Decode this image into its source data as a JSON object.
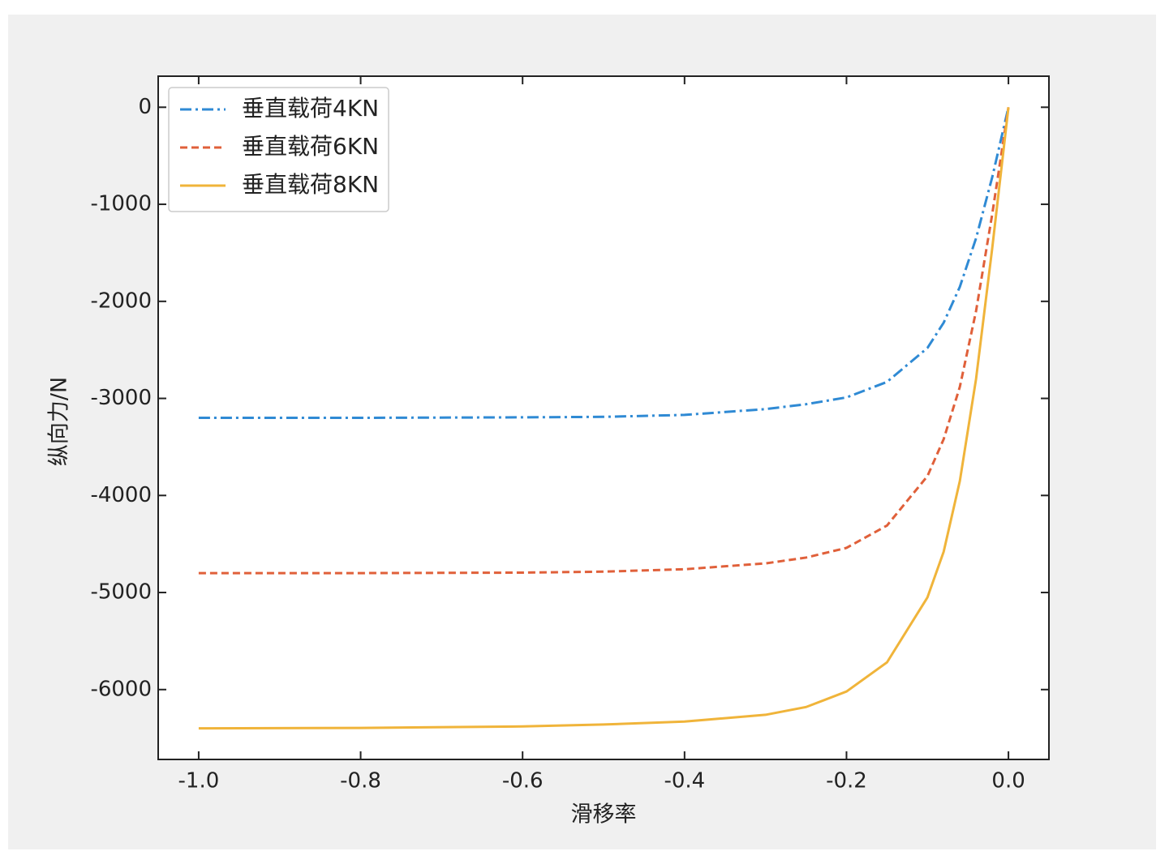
{
  "chart_data": {
    "type": "line",
    "xlabel": "滑移率",
    "ylabel": "纵向力/N",
    "x": [
      -1,
      -0.8,
      -0.6,
      -0.5,
      -0.4,
      -0.3,
      -0.25,
      -0.2,
      -0.15,
      -0.1,
      -0.08,
      -0.06,
      -0.04,
      -0.02,
      0
    ],
    "series": [
      {
        "name": "垂直载荷4KN",
        "color": "#2f8ad4",
        "linestyle": "dashdot",
        "values": [
          -3200,
          -3200,
          -3195,
          -3190,
          -3170,
          -3110,
          -3060,
          -2990,
          -2830,
          -2480,
          -2220,
          -1850,
          -1350,
          -720,
          0
        ]
      },
      {
        "name": "垂直载荷6KN",
        "color": "#e0603a",
        "linestyle": "dashed",
        "values": [
          -4800,
          -4800,
          -4795,
          -4785,
          -4760,
          -4700,
          -4640,
          -4540,
          -4310,
          -3800,
          -3420,
          -2880,
          -2100,
          -1100,
          0
        ]
      },
      {
        "name": "垂直载荷8KN",
        "color": "#f0b43a",
        "linestyle": "solid",
        "values": [
          -6400,
          -6395,
          -6380,
          -6360,
          -6330,
          -6260,
          -6180,
          -6020,
          -5720,
          -5050,
          -4580,
          -3850,
          -2800,
          -1450,
          0
        ]
      }
    ],
    "xlim": [
      -1.05,
      0.05
    ],
    "ylim": [
      -6720,
      320
    ],
    "xticks": [
      {
        "value": -1,
        "label": "-1.0"
      },
      {
        "value": -0.8,
        "label": "-0.8"
      },
      {
        "value": -0.6,
        "label": "-0.6"
      },
      {
        "value": -0.4,
        "label": "-0.4"
      },
      {
        "value": -0.2,
        "label": "-0.2"
      },
      {
        "value": 0,
        "label": "0.0"
      }
    ],
    "yticks": [
      0,
      -1000,
      -2000,
      -3000,
      -4000,
      -5000,
      -6000
    ],
    "legend": "upper left",
    "tick_direction": "in"
  }
}
